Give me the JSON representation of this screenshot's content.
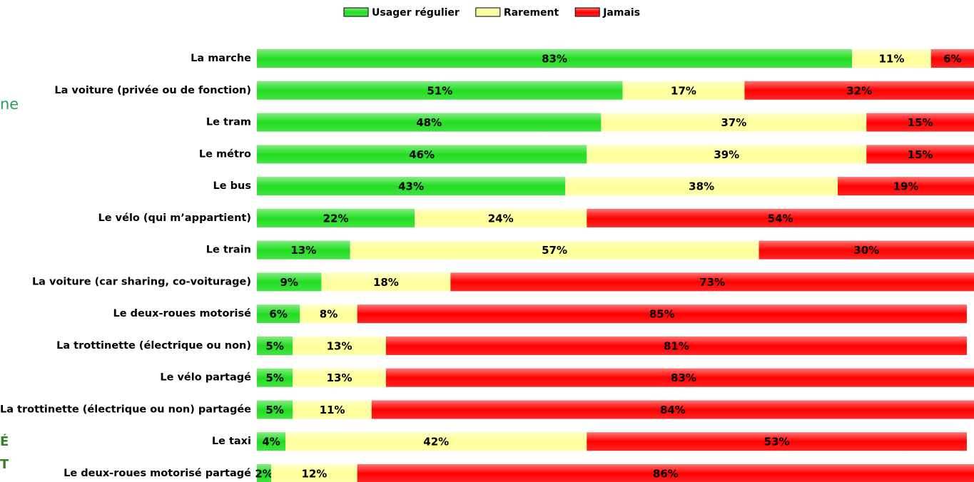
{
  "chart_data": {
    "type": "stacked-bar-horizontal",
    "annotations": [
      "ne",
      "É",
      "T"
    ],
    "categories": [
      "La marche",
      "La voiture (privée ou de fonction)",
      "Le tram",
      "Le métro",
      "Le bus",
      "Le vélo (qui m’appartient)",
      "Le train",
      "La voiture (car sharing, co-voiturage)",
      "Le deux-roues motorisé",
      "La trottinette (électrique ou non)",
      "Le vélo partagé",
      "La trottinette (électrique ou non) partagée",
      "Le taxi",
      "Le deux-roues motorisé partagé"
    ],
    "xlim": [
      0,
      100
    ],
    "series": [
      {
        "name": "Usager régulier",
        "color": "#22dd22",
        "values": [
          83,
          51,
          48,
          46,
          43,
          22,
          13,
          9,
          6,
          5,
          5,
          5,
          4,
          2
        ],
        "value_labels": [
          "83%",
          "51%",
          "48%",
          "46%",
          "43%",
          "22%",
          "13%",
          "9%",
          "6%",
          "5%",
          "5%",
          "5%",
          "4%",
          "2%"
        ]
      },
      {
        "name": "Rarement",
        "color": "#ffff99",
        "values": [
          11,
          17,
          37,
          39,
          38,
          24,
          57,
          18,
          8,
          13,
          13,
          11,
          42,
          12
        ],
        "value_labels": [
          "11%",
          "17%",
          "37%",
          "39%",
          "38%",
          "24%",
          "57%",
          "18%",
          "8%",
          "13%",
          "13%",
          "11%",
          "42%",
          "12%"
        ]
      },
      {
        "name": "Jamais",
        "color": "#ff0000",
        "values": [
          6,
          32,
          15,
          15,
          19,
          54,
          30,
          73,
          85,
          81,
          83,
          84,
          53,
          86
        ],
        "value_labels": [
          "6%",
          "32%",
          "15%",
          "15%",
          "19%",
          "54%",
          "30%",
          "73%",
          "85%",
          "81%",
          "83%",
          "84%",
          "53%",
          "86%"
        ]
      }
    ]
  }
}
